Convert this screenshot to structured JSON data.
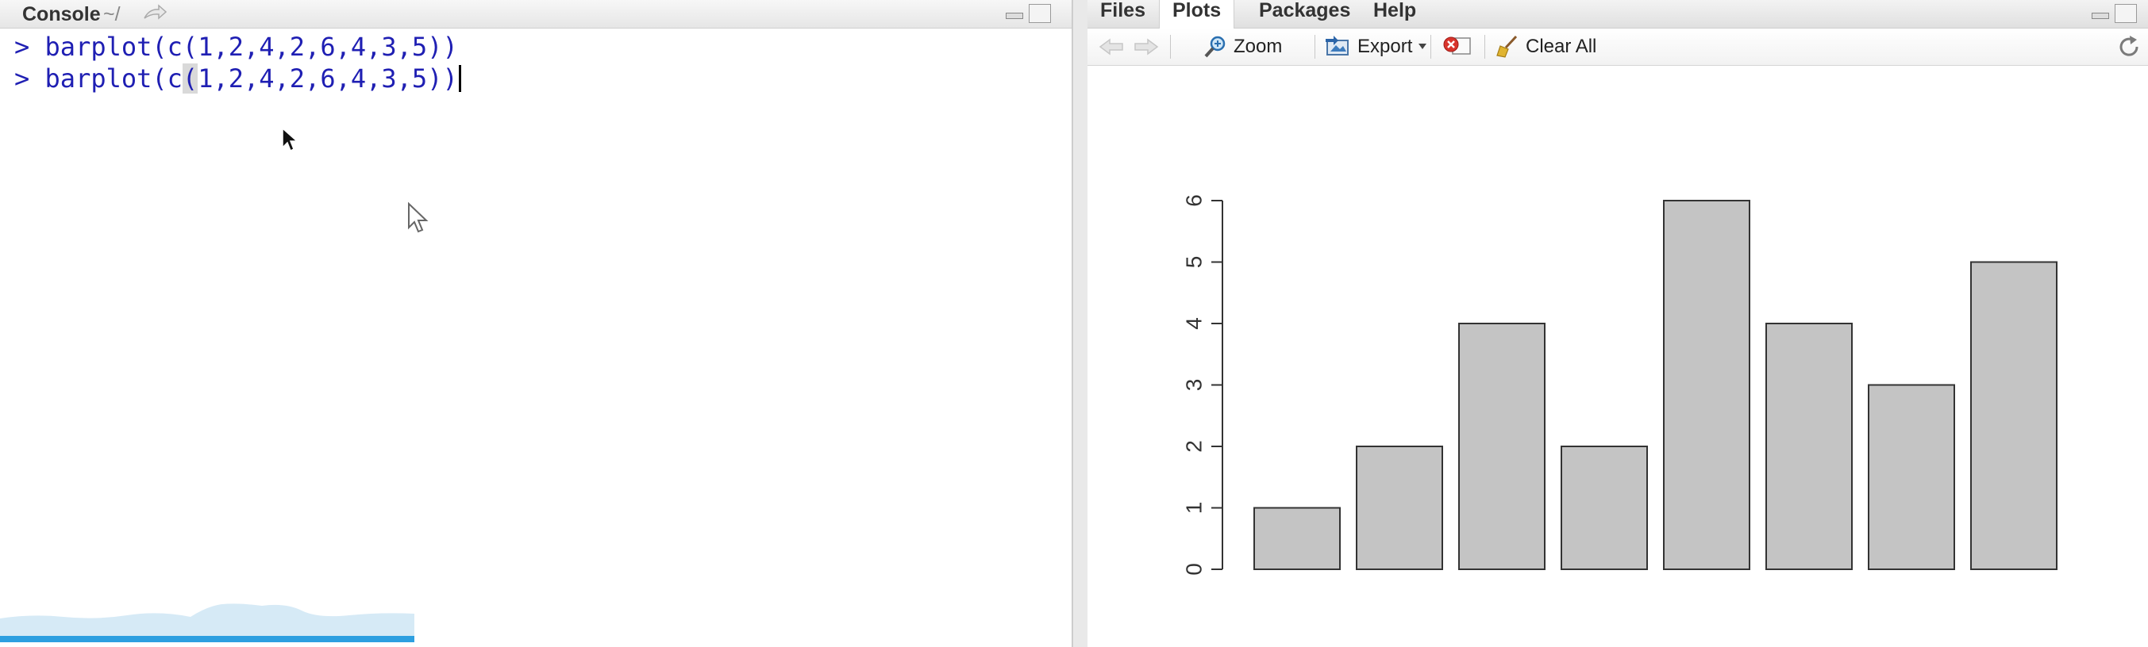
{
  "console": {
    "title": "Console",
    "path": "~/",
    "lines": [
      {
        "prompt": ">",
        "code": "barplot(c(1,2,4,2,6,4,3,5))"
      },
      {
        "prompt": ">",
        "code_before": "barplot(c",
        "code_hl": "(",
        "code_after": "1,2,4,2,6,4,3,5))"
      }
    ]
  },
  "tabs": [
    {
      "label": "Files",
      "active": false
    },
    {
      "label": "Plots",
      "active": true
    },
    {
      "label": "Packages",
      "active": false
    },
    {
      "label": "Help",
      "active": false
    }
  ],
  "toolbar": {
    "back_icon": "back-arrow-icon",
    "forward_icon": "forward-arrow-icon",
    "zoom_label": "Zoom",
    "export_label": "Export",
    "remove_icon": "remove-plot-icon",
    "clear_all_label": "Clear All",
    "refresh_icon": "refresh-icon"
  },
  "colors": {
    "code": "#1f1fb3",
    "bar_fill": "#c4c4c4",
    "bar_stroke": "#333333",
    "progress": "#2d9fe0"
  },
  "chart_data": {
    "type": "bar",
    "values": [
      1,
      2,
      4,
      2,
      6,
      4,
      3,
      5
    ],
    "ylim": [
      0,
      6
    ],
    "yticks": [
      "0",
      "1",
      "2",
      "3",
      "4",
      "5",
      "6"
    ],
    "title": "",
    "xlabel": "",
    "ylabel": "",
    "grid": false
  }
}
